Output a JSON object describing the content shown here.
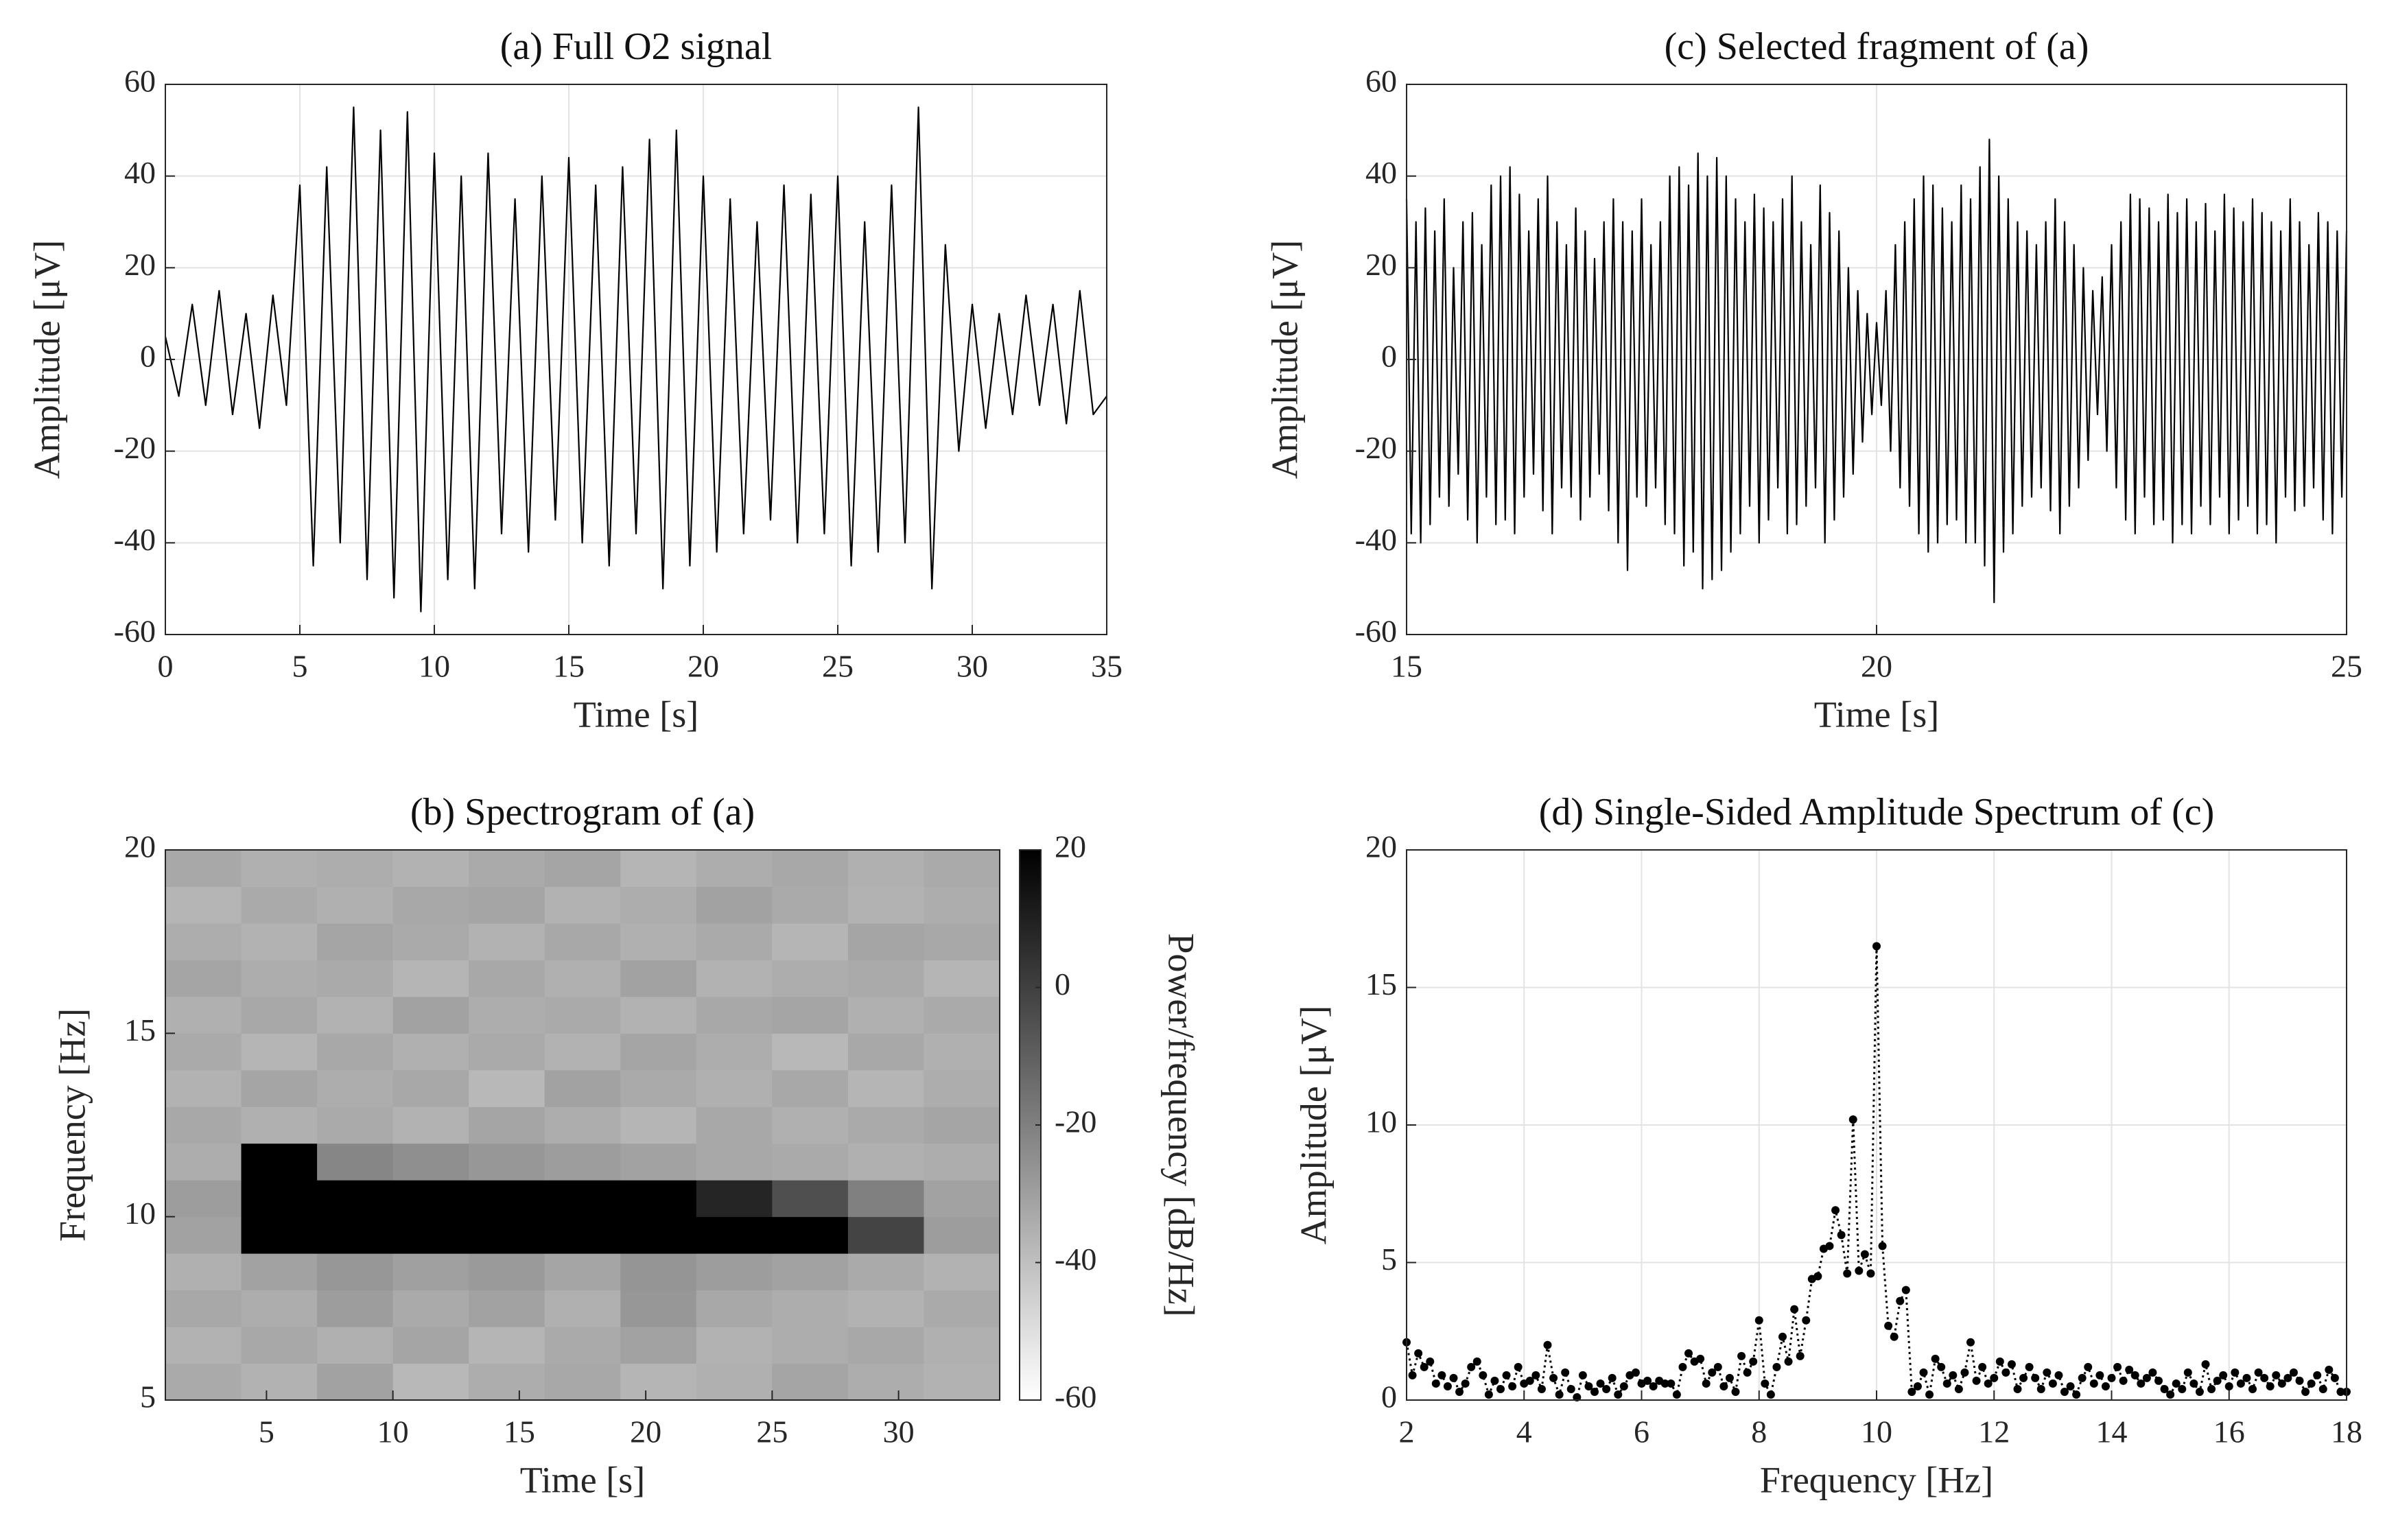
{
  "chart_data": [
    {
      "type": "line",
      "title": "(a) Full O2 signal",
      "xlabel": "Time [s]",
      "ylabel": "Amplitude [μV]",
      "x": [
        0,
        0.5,
        1,
        1.5,
        2,
        2.5,
        3,
        3.5,
        4,
        4.5,
        5,
        5.5,
        6,
        6.5,
        7,
        7.5,
        8,
        8.5,
        9,
        9.5,
        10,
        10.5,
        11,
        11.5,
        12,
        12.5,
        13,
        13.5,
        14,
        14.5,
        15,
        15.5,
        16,
        16.5,
        17,
        17.5,
        18,
        18.5,
        19,
        19.5,
        20,
        20.5,
        21,
        21.5,
        22,
        22.5,
        23,
        23.5,
        24,
        24.5,
        25,
        25.5,
        26,
        26.5,
        27,
        27.5,
        28,
        28.5,
        29,
        29.5,
        30,
        30.5,
        31,
        31.5,
        32,
        32.5,
        33,
        33.5,
        34,
        34.5,
        35
      ],
      "values": [
        5,
        -8,
        12,
        -10,
        15,
        -12,
        10,
        -15,
        14,
        -10,
        38,
        -45,
        42,
        -40,
        55,
        -48,
        50,
        -52,
        54,
        -55,
        45,
        -48,
        40,
        -50,
        45,
        -38,
        35,
        -42,
        40,
        -35,
        44,
        -40,
        38,
        -45,
        42,
        -38,
        48,
        -50,
        50,
        -45,
        40,
        -42,
        35,
        -38,
        30,
        -35,
        38,
        -40,
        36,
        -38,
        40,
        -45,
        30,
        -42,
        38,
        -40,
        55,
        -50,
        25,
        -20,
        12,
        -15,
        10,
        -12,
        14,
        -10,
        12,
        -14,
        15,
        -12,
        -8
      ],
      "color": "#000000",
      "xlim": [
        0,
        35
      ],
      "ylim": [
        -60,
        60
      ],
      "xticks": [
        0,
        5,
        10,
        15,
        20,
        25,
        30,
        35
      ],
      "yticks": [
        -60,
        -40,
        -20,
        0,
        20,
        40,
        60
      ],
      "grid": true
    },
    {
      "type": "heatmap",
      "title": "(b) Spectrogram of (a)",
      "xlabel": "Time [s]",
      "ylabel": "Frequency [Hz]",
      "colorbar_label": "Power/frequency [dB/Hz]",
      "xbins": [
        1,
        4,
        7,
        10,
        13,
        16,
        19,
        22,
        25,
        28,
        31,
        34
      ],
      "ybins": [
        5,
        6,
        7,
        8,
        9,
        10,
        11,
        12,
        13,
        14,
        15,
        16,
        17,
        18,
        19,
        20
      ],
      "z": [
        [
          -25,
          -28,
          -22,
          -30,
          -26,
          -24,
          -29,
          -27,
          -23,
          -26,
          -28
        ],
        [
          -28,
          -24,
          -27,
          -23,
          -29,
          -25,
          -22,
          -28,
          -26,
          -24,
          -27
        ],
        [
          -24,
          -26,
          -20,
          -25,
          -22,
          -27,
          -18,
          -24,
          -26,
          -28,
          -25
        ],
        [
          -27,
          -22,
          -18,
          -21,
          -19,
          -23,
          -17,
          -20,
          -22,
          -25,
          -28
        ],
        [
          -22,
          25,
          28,
          30,
          28,
          32,
          35,
          35,
          30,
          8,
          -20
        ],
        [
          -20,
          30,
          32,
          30,
          28,
          26,
          22,
          15,
          5,
          -10,
          -22
        ],
        [
          -26,
          22,
          -12,
          -15,
          -18,
          -20,
          -22,
          -24,
          -25,
          -27,
          -26
        ],
        [
          -24,
          -27,
          -25,
          -28,
          -23,
          -26,
          -29,
          -24,
          -27,
          -25,
          -23
        ],
        [
          -28,
          -23,
          -26,
          -24,
          -30,
          -22,
          -25,
          -27,
          -24,
          -29,
          -26
        ],
        [
          -25,
          -29,
          -24,
          -27,
          -25,
          -28,
          -23,
          -26,
          -30,
          -24,
          -27
        ],
        [
          -27,
          -24,
          -28,
          -22,
          -26,
          -25,
          -28,
          -24,
          -23,
          -27,
          -25
        ],
        [
          -23,
          -26,
          -25,
          -29,
          -24,
          -27,
          -22,
          -28,
          -26,
          -25,
          -29
        ],
        [
          -26,
          -28,
          -23,
          -25,
          -28,
          -24,
          -27,
          -25,
          -29,
          -23,
          -24
        ],
        [
          -29,
          -25,
          -27,
          -24,
          -23,
          -28,
          -26,
          -22,
          -25,
          -28,
          -26
        ],
        [
          -24,
          -27,
          -26,
          -28,
          -25,
          -23,
          -29,
          -26,
          -24,
          -27,
          -25
        ]
      ],
      "xlim": [
        1,
        34
      ],
      "ylim": [
        5,
        20
      ],
      "xticks": [
        5,
        10,
        15,
        20,
        25,
        30
      ],
      "yticks": [
        5,
        10,
        15,
        20
      ],
      "clim": [
        -60,
        20
      ],
      "cticks": [
        20,
        0,
        -20,
        -40,
        -60
      ],
      "grid": false
    },
    {
      "type": "line",
      "title": "(c) Selected fragment of (a)",
      "xlabel": "Time [s]",
      "ylabel": "Amplitude [μV]",
      "x": [
        15,
        15.05,
        15.1,
        15.15,
        15.2,
        15.25,
        15.3,
        15.35,
        15.4,
        15.45,
        15.5,
        15.55,
        15.6,
        15.65,
        15.7,
        15.75,
        15.8,
        15.85,
        15.9,
        15.95,
        16,
        16.05,
        16.1,
        16.15,
        16.2,
        16.25,
        16.3,
        16.35,
        16.4,
        16.45,
        16.5,
        16.55,
        16.6,
        16.65,
        16.7,
        16.75,
        16.8,
        16.85,
        16.9,
        16.95,
        17,
        17.05,
        17.1,
        17.15,
        17.2,
        17.25,
        17.3,
        17.35,
        17.4,
        17.45,
        17.5,
        17.55,
        17.6,
        17.65,
        17.7,
        17.75,
        17.8,
        17.85,
        17.9,
        17.95,
        18,
        18.05,
        18.1,
        18.15,
        18.2,
        18.25,
        18.3,
        18.35,
        18.4,
        18.45,
        18.5,
        18.55,
        18.6,
        18.65,
        18.7,
        18.75,
        18.8,
        18.85,
        18.9,
        18.95,
        19,
        19.05,
        19.1,
        19.15,
        19.2,
        19.25,
        19.3,
        19.35,
        19.4,
        19.45,
        19.5,
        19.55,
        19.6,
        19.65,
        19.7,
        19.75,
        19.8,
        19.85,
        19.9,
        19.95,
        20,
        20.05,
        20.1,
        20.15,
        20.2,
        20.25,
        20.3,
        20.35,
        20.4,
        20.45,
        20.5,
        20.55,
        20.6,
        20.65,
        20.7,
        20.75,
        20.8,
        20.85,
        20.9,
        20.95,
        21,
        21.05,
        21.1,
        21.15,
        21.2,
        21.25,
        21.3,
        21.35,
        21.4,
        21.45,
        21.5,
        21.55,
        21.6,
        21.65,
        21.7,
        21.75,
        21.8,
        21.85,
        21.9,
        21.95,
        22,
        22.05,
        22.1,
        22.15,
        22.2,
        22.25,
        22.3,
        22.35,
        22.4,
        22.45,
        22.5,
        22.55,
        22.6,
        22.65,
        22.7,
        22.75,
        22.8,
        22.85,
        22.9,
        22.95,
        23,
        23.05,
        23.1,
        23.15,
        23.2,
        23.25,
        23.3,
        23.35,
        23.4,
        23.45,
        23.5,
        23.55,
        23.6,
        23.65,
        23.7,
        23.75,
        23.8,
        23.85,
        23.9,
        23.95,
        24,
        24.05,
        24.1,
        24.15,
        24.2,
        24.25,
        24.3,
        24.35,
        24.4,
        24.45,
        24.5,
        24.55,
        24.6,
        24.65,
        24.7,
        24.75,
        24.8,
        24.85,
        24.9,
        24.95,
        25
      ],
      "values": [
        35,
        -38,
        30,
        -40,
        33,
        -36,
        28,
        -30,
        35,
        -32,
        20,
        -25,
        30,
        -35,
        32,
        -40,
        25,
        -30,
        38,
        -36,
        40,
        -35,
        42,
        -38,
        36,
        -30,
        28,
        -25,
        35,
        -33,
        40,
        -38,
        30,
        -28,
        25,
        -30,
        33,
        -35,
        28,
        -30,
        22,
        -25,
        30,
        -33,
        35,
        -40,
        30,
        -46,
        28,
        -30,
        35,
        -32,
        25,
        -28,
        30,
        -36,
        40,
        -38,
        42,
        -45,
        38,
        -42,
        45,
        -50,
        40,
        -48,
        44,
        -46,
        40,
        -42,
        35,
        -38,
        30,
        -32,
        36,
        -40,
        33,
        -35,
        30,
        -28,
        35,
        -38,
        40,
        -36,
        30,
        -32,
        25,
        -28,
        38,
        -40,
        32,
        -35,
        28,
        -30,
        20,
        -25,
        15,
        -18,
        10,
        -12,
        8,
        -10,
        15,
        -20,
        25,
        -28,
        30,
        -32,
        35,
        -38,
        40,
        -42,
        38,
        -40,
        33,
        -36,
        30,
        -35,
        38,
        -40,
        35,
        -40,
        42,
        -45,
        48,
        -53,
        40,
        -42,
        35,
        -38,
        30,
        -32,
        28,
        -30,
        25,
        -28,
        30,
        -33,
        35,
        -38,
        30,
        -32,
        25,
        -28,
        20,
        -22,
        15,
        -12,
        18,
        -20,
        25,
        -28,
        30,
        -35,
        36,
        -38,
        35,
        -30,
        33,
        -36,
        30,
        -35,
        36,
        -40,
        32,
        -36,
        35,
        -38,
        30,
        -32,
        34,
        -36,
        28,
        -30,
        36,
        -38,
        33,
        -35,
        30,
        -32,
        35,
        -38,
        32,
        -36,
        30,
        -40,
        28,
        -30,
        35,
        -33,
        30,
        -32,
        25,
        -28,
        32,
        -35,
        30,
        -38,
        28,
        -30,
        28
      ],
      "color": "#000000",
      "xlim": [
        15,
        25
      ],
      "ylim": [
        -60,
        60
      ],
      "xticks": [
        15,
        20,
        25
      ],
      "yticks": [
        -60,
        -40,
        -20,
        0,
        20,
        40,
        60
      ],
      "grid": true
    },
    {
      "type": "line",
      "title": "(d) Single-Sided Amplitude Spectrum of (c)",
      "xlabel": "Frequency [Hz]",
      "ylabel": "Amplitude [μV]",
      "x": [
        2,
        2.1,
        2.2,
        2.3,
        2.4,
        2.5,
        2.6,
        2.7,
        2.8,
        2.9,
        3,
        3.1,
        3.2,
        3.3,
        3.4,
        3.5,
        3.6,
        3.7,
        3.8,
        3.9,
        4,
        4.1,
        4.2,
        4.3,
        4.4,
        4.5,
        4.6,
        4.7,
        4.8,
        4.9,
        5,
        5.1,
        5.2,
        5.3,
        5.4,
        5.5,
        5.6,
        5.7,
        5.8,
        5.9,
        6,
        6.1,
        6.2,
        6.3,
        6.4,
        6.5,
        6.6,
        6.7,
        6.8,
        6.9,
        7,
        7.1,
        7.2,
        7.3,
        7.4,
        7.5,
        7.6,
        7.7,
        7.8,
        7.9,
        8,
        8.1,
        8.2,
        8.3,
        8.4,
        8.5,
        8.6,
        8.7,
        8.8,
        8.9,
        9,
        9.1,
        9.2,
        9.3,
        9.4,
        9.5,
        9.6,
        9.7,
        9.8,
        9.9,
        10,
        10.1,
        10.2,
        10.3,
        10.4,
        10.5,
        10.6,
        10.7,
        10.8,
        10.9,
        11,
        11.1,
        11.2,
        11.3,
        11.4,
        11.5,
        11.6,
        11.7,
        11.8,
        11.9,
        12,
        12.1,
        12.2,
        12.3,
        12.4,
        12.5,
        12.6,
        12.7,
        12.8,
        12.9,
        13,
        13.1,
        13.2,
        13.3,
        13.4,
        13.5,
        13.6,
        13.7,
        13.8,
        13.9,
        14,
        14.1,
        14.2,
        14.3,
        14.4,
        14.5,
        14.6,
        14.7,
        14.8,
        14.9,
        15,
        15.1,
        15.2,
        15.3,
        15.4,
        15.5,
        15.6,
        15.7,
        15.8,
        15.9,
        16,
        16.1,
        16.2,
        16.3,
        16.4,
        16.5,
        16.6,
        16.7,
        16.8,
        16.9,
        17,
        17.1,
        17.2,
        17.3,
        17.4,
        17.5,
        17.6,
        17.7,
        17.8,
        17.9,
        18
      ],
      "values": [
        2.1,
        0.9,
        1.7,
        1.2,
        1.4,
        0.6,
        0.9,
        0.5,
        0.8,
        0.3,
        0.6,
        1.2,
        1.4,
        0.9,
        0.2,
        0.7,
        0.4,
        0.9,
        0.5,
        1.2,
        0.6,
        0.7,
        0.9,
        0.4,
        2.0,
        0.8,
        0.2,
        1.0,
        0.4,
        0.1,
        0.9,
        0.5,
        0.3,
        0.6,
        0.4,
        0.8,
        0.2,
        0.5,
        0.9,
        1.0,
        0.6,
        0.7,
        0.5,
        0.7,
        0.6,
        0.6,
        0.2,
        1.2,
        1.7,
        1.4,
        1.5,
        0.6,
        1.0,
        1.2,
        0.5,
        0.8,
        0.3,
        1.6,
        1.0,
        1.4,
        2.9,
        0.6,
        0.2,
        1.2,
        2.3,
        1.4,
        3.3,
        1.6,
        2.9,
        4.4,
        4.5,
        5.5,
        5.6,
        6.9,
        6.0,
        4.6,
        10.2,
        4.7,
        5.3,
        4.6,
        16.5,
        5.6,
        2.7,
        2.3,
        3.6,
        4.0,
        0.3,
        0.5,
        1.0,
        0.2,
        1.5,
        1.2,
        0.6,
        0.9,
        0.4,
        1.0,
        2.1,
        0.7,
        1.2,
        0.6,
        0.8,
        1.4,
        1.0,
        1.3,
        0.4,
        0.8,
        1.2,
        0.8,
        0.4,
        1.0,
        0.6,
        0.9,
        0.3,
        0.5,
        0.2,
        0.8,
        1.2,
        0.6,
        0.9,
        0.5,
        0.8,
        1.2,
        0.7,
        1.1,
        0.9,
        0.6,
        0.8,
        1.0,
        0.7,
        0.4,
        0.2,
        0.6,
        0.4,
        1.0,
        0.6,
        0.3,
        1.3,
        0.4,
        0.7,
        0.9,
        0.5,
        1.0,
        0.6,
        0.8,
        0.4,
        1.0,
        0.8,
        0.5,
        0.9,
        0.6,
        0.8,
        1.0,
        0.7,
        0.3,
        0.6,
        0.9,
        0.4,
        1.1,
        0.8,
        0.3,
        0.3
      ],
      "color": "#000000",
      "markers": true,
      "line_style": "dotted",
      "xlim": [
        2,
        18
      ],
      "ylim": [
        0,
        20
      ],
      "xticks": [
        2,
        4,
        6,
        8,
        10,
        12,
        14,
        16,
        18
      ],
      "yticks": [
        0,
        5,
        10,
        15,
        20
      ],
      "grid": true
    }
  ]
}
